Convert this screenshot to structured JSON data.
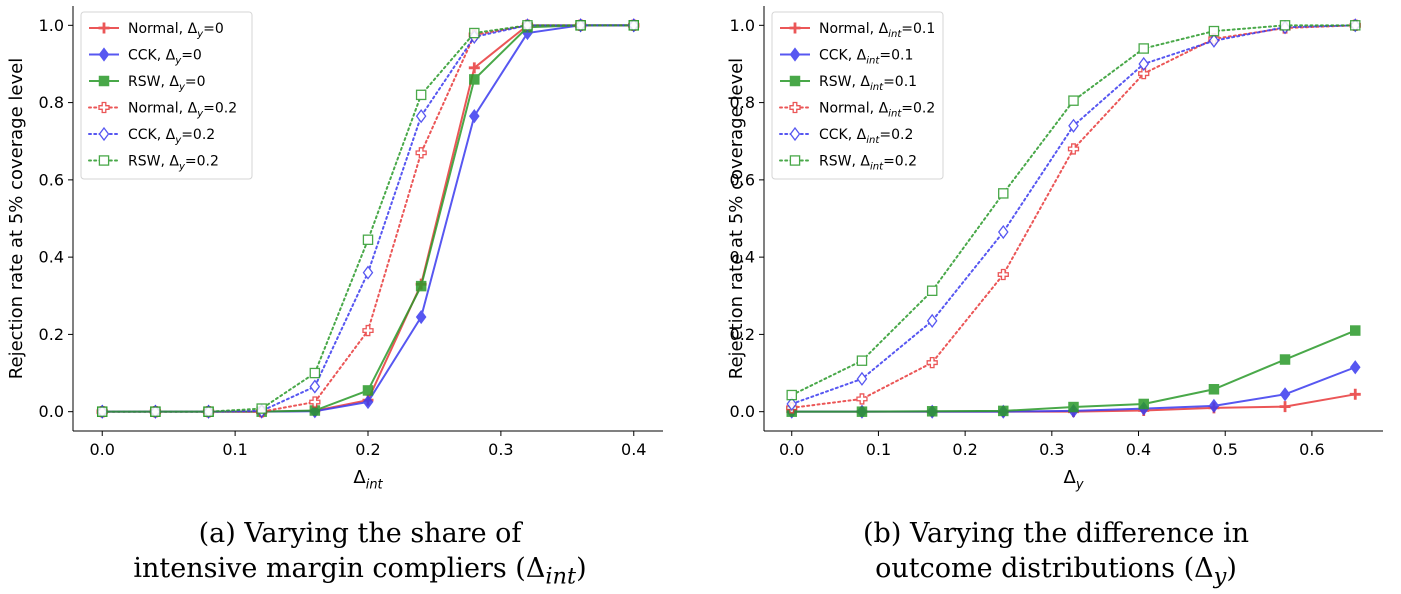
{
  "colors": {
    "normal": "#e8393a",
    "cck": "#3a3aef",
    "rsw": "#2a9a2a"
  },
  "legend_position": "upper-left",
  "ylabel_text": "Rejection rate at 5% coverage level",
  "captions": {
    "a_line1": "(a) Varying the share of",
    "a_line2": "intensive margin compliers (Δ",
    "a_sub": "int",
    "a_close": ")",
    "b_line1": "(b) Varying the difference in",
    "b_line2": "outcome distributions (Δ",
    "b_sub": "y",
    "b_close": ")"
  },
  "chart_data": [
    {
      "type": "line",
      "panel": "a",
      "xlabel": "Δ_int",
      "ylabel": "Rejection rate at 5% coverage level",
      "xlim": [
        -0.022,
        0.422
      ],
      "ylim": [
        -0.05,
        1.05
      ],
      "xticks": [
        0.0,
        0.1,
        0.2,
        0.3,
        0.4
      ],
      "yticks": [
        0.0,
        0.2,
        0.4,
        0.6,
        0.8,
        1.0
      ],
      "grid": false,
      "x": [
        0.0,
        0.04,
        0.08,
        0.12,
        0.16,
        0.2,
        0.24,
        0.28,
        0.32,
        0.36,
        0.4
      ],
      "series": [
        {
          "name": "Normal, Δ_y=0",
          "method": "normal",
          "style": "solid",
          "marker": "plus",
          "values": [
            0,
            0,
            0,
            0,
            0.002,
            0.03,
            0.33,
            0.89,
            1.0,
            1.0,
            1.0
          ]
        },
        {
          "name": "CCK, Δ_y=0",
          "method": "cck",
          "style": "solid",
          "marker": "diamond",
          "values": [
            0,
            0,
            0,
            0,
            0.001,
            0.025,
            0.245,
            0.765,
            0.98,
            1.0,
            1.0
          ]
        },
        {
          "name": "RSW, Δ_y=0",
          "method": "rsw",
          "style": "solid",
          "marker": "square",
          "values": [
            0,
            0,
            0,
            0,
            0.003,
            0.055,
            0.325,
            0.86,
            0.995,
            1.0,
            1.0
          ]
        },
        {
          "name": "Normal, Δ_y=0.2",
          "method": "normal",
          "style": "dotted",
          "marker": "plus-open",
          "values": [
            0,
            0,
            0,
            0,
            0.025,
            0.21,
            0.67,
            0.975,
            1.0,
            1.0,
            1.0
          ]
        },
        {
          "name": "CCK, Δ_y=0.2",
          "method": "cck",
          "style": "dotted",
          "marker": "diamond-open",
          "values": [
            0,
            0,
            0,
            0.002,
            0.065,
            0.36,
            0.765,
            0.97,
            1.0,
            1.0,
            1.0
          ]
        },
        {
          "name": "RSW, Δ_y=0.2",
          "method": "rsw",
          "style": "dotted",
          "marker": "square-open",
          "values": [
            0,
            0,
            0,
            0.008,
            0.1,
            0.445,
            0.82,
            0.98,
            1.0,
            1.0,
            1.0
          ]
        }
      ]
    },
    {
      "type": "line",
      "panel": "b",
      "xlabel": "Δ_y",
      "ylabel": "Rejection rate at 5% coverage level",
      "xlim": [
        -0.032,
        0.682
      ],
      "ylim": [
        -0.05,
        1.05
      ],
      "xticks": [
        0.0,
        0.1,
        0.2,
        0.3,
        0.4,
        0.5,
        0.6
      ],
      "yticks": [
        0.0,
        0.2,
        0.4,
        0.6,
        0.8,
        1.0
      ],
      "grid": false,
      "x": [
        0.0,
        0.081,
        0.162,
        0.244,
        0.325,
        0.406,
        0.487,
        0.569,
        0.65
      ],
      "series": [
        {
          "name": "Normal, Δ_int=0.1",
          "method": "normal",
          "style": "solid",
          "marker": "plus",
          "values": [
            0,
            0,
            0,
            0,
            0,
            0.003,
            0.01,
            0.013,
            0.045
          ]
        },
        {
          "name": "CCK, Δ_int=0.1",
          "method": "cck",
          "style": "solid",
          "marker": "diamond",
          "values": [
            0,
            0,
            0,
            0,
            0.002,
            0.008,
            0.015,
            0.045,
            0.115
          ]
        },
        {
          "name": "RSW, Δ_int=0.1",
          "method": "rsw",
          "style": "solid",
          "marker": "square",
          "values": [
            0,
            0,
            0.001,
            0.002,
            0.012,
            0.02,
            0.058,
            0.135,
            0.21
          ]
        },
        {
          "name": "Normal, Δ_int=0.2",
          "method": "normal",
          "style": "dotted",
          "marker": "plus-open",
          "values": [
            0.01,
            0.033,
            0.127,
            0.355,
            0.68,
            0.875,
            0.965,
            0.993,
            1.0
          ]
        },
        {
          "name": "CCK, Δ_int=0.2",
          "method": "cck",
          "style": "dotted",
          "marker": "diamond-open",
          "values": [
            0.02,
            0.085,
            0.235,
            0.465,
            0.74,
            0.9,
            0.96,
            0.995,
            1.0
          ]
        },
        {
          "name": "RSW, Δ_int=0.2",
          "method": "rsw",
          "style": "dotted",
          "marker": "square-open",
          "values": [
            0.043,
            0.132,
            0.313,
            0.565,
            0.805,
            0.94,
            0.985,
            1.0,
            1.0
          ]
        }
      ]
    }
  ]
}
